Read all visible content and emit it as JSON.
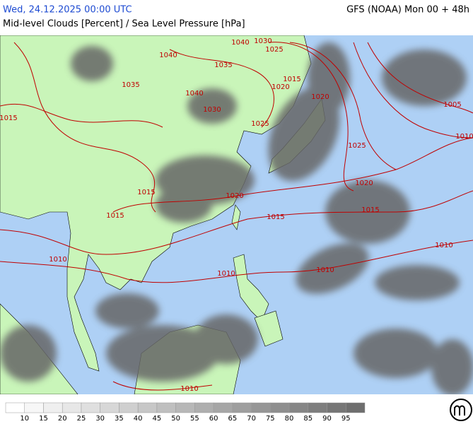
{
  "header": {
    "valid_time": "Wed, 24.12.2025 00:00 UTC",
    "model": "GFS (NOAA) Mon 00 + 48h",
    "title": "Mid-level Clouds [Percent] / Sea Level Pressure [hPa]"
  },
  "isobar_labels": [
    1040,
    1030,
    1025,
    1040,
    1035,
    1035,
    1040,
    1030,
    1020,
    1015,
    1020,
    1005,
    1010,
    1025,
    1020,
    1015,
    1010,
    1010,
    1010,
    1010,
    1015,
    1020,
    1015,
    1015,
    1025,
    1015,
    1010
  ],
  "legend": {
    "ticks": [
      10,
      15,
      20,
      25,
      30,
      35,
      40,
      45,
      50,
      55,
      60,
      65,
      70,
      75,
      80,
      85,
      90,
      95
    ]
  }
}
